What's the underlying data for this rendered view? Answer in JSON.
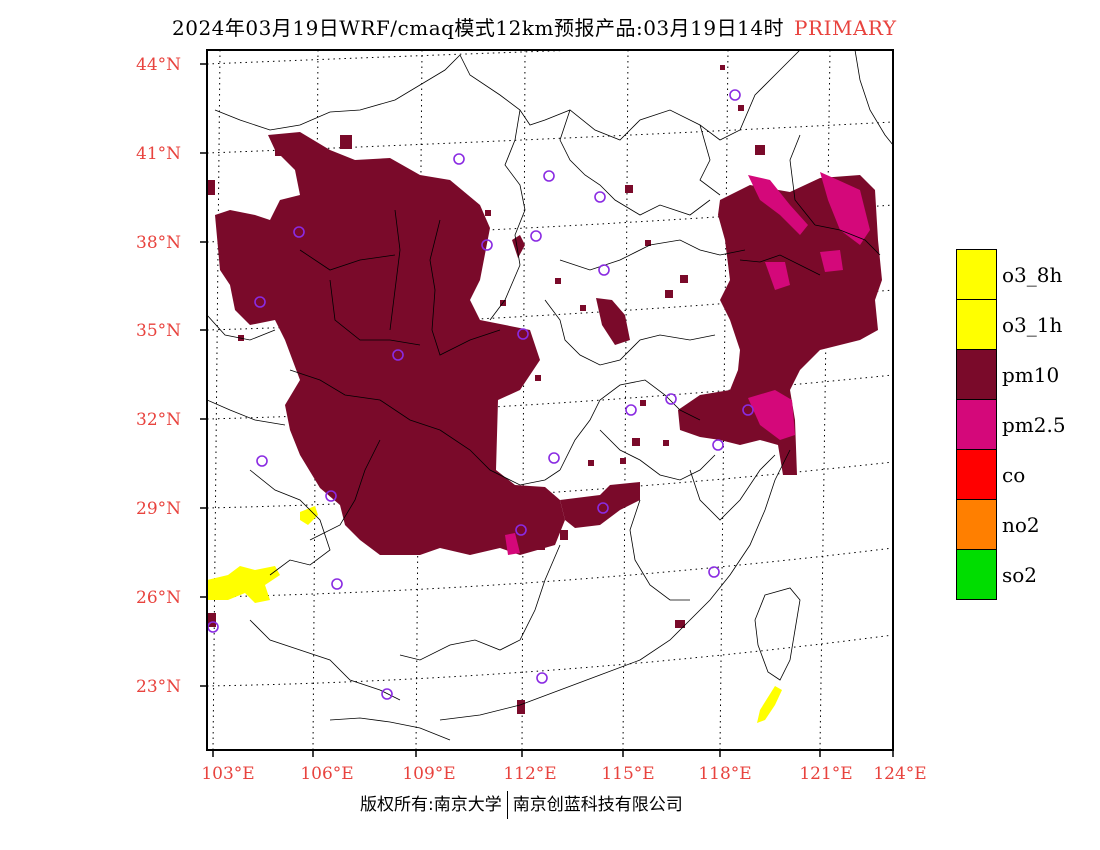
{
  "title": {
    "main": "2024年03月19日WRF/cmaq模式12km预报产品:03月19日14时",
    "tag": "PRIMARY"
  },
  "axes": {
    "lat_labels": [
      "44°N",
      "41°N",
      "38°N",
      "35°N",
      "32°N",
      "29°N",
      "26°N",
      "23°N"
    ],
    "lon_labels": [
      "103°E",
      "106°E",
      "109°E",
      "112°E",
      "115°E",
      "118°E",
      "121°E",
      "124°E"
    ]
  },
  "footer": {
    "left": "版权所有:南京大学",
    "right": "南京创蓝科技有限公司"
  },
  "legend": {
    "items": [
      {
        "label": "o3_8h",
        "color": "#ffff00"
      },
      {
        "label": "o3_1h",
        "color": "#ffff00"
      },
      {
        "label": "pm10",
        "color": "#7a0a2a"
      },
      {
        "label": "pm2.5",
        "color": "#d4087a"
      },
      {
        "label": "co",
        "color": "#ff0000"
      },
      {
        "label": "no2",
        "color": "#ff7f00"
      },
      {
        "label": "so2",
        "color": "#00dd00"
      }
    ]
  },
  "colors": {
    "pm10": "#7a0a2a",
    "pm25": "#d4087a",
    "o3": "#ffff00",
    "station": "#8a2be2",
    "label": "#e8433e"
  }
}
